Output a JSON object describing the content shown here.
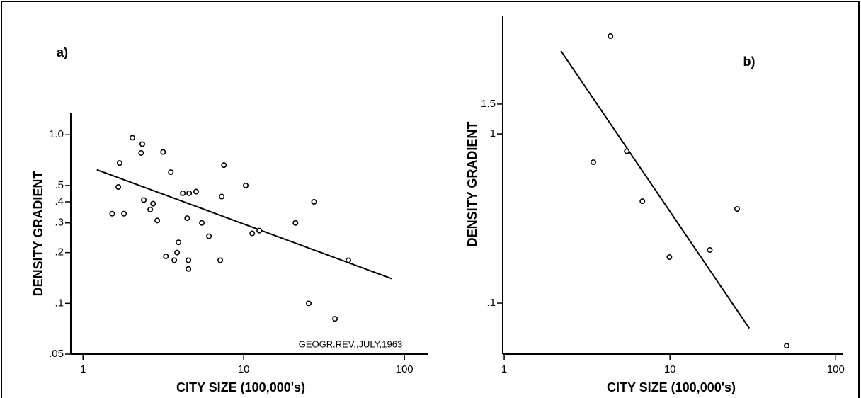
{
  "chart_data": [
    {
      "type": "scatter",
      "label": "a)",
      "xlabel": "CITY SIZE (100,000's)",
      "ylabel": "DENSITY GRADIENT",
      "annotation": "GEOGR.REV.,JULY,1963",
      "xscale": "log",
      "yscale": "log",
      "color": "#000000",
      "xlim": [
        0.84,
        141
      ],
      "ylim": [
        0.05,
        1.34
      ],
      "xticks": [
        1,
        10,
        100
      ],
      "yticks": [
        {
          "value": 1,
          "label": "1.0"
        },
        {
          "value": 0.5,
          "label": ".5"
        },
        {
          "value": 0.4,
          "label": ".4"
        },
        {
          "value": 0.3,
          "label": ".3"
        },
        {
          "value": 0.2,
          "label": ".2"
        },
        {
          "value": 0.1,
          "label": ".1"
        },
        {
          "value": 0.05,
          "label": ".05"
        }
      ],
      "x": [
        1.52,
        1.66,
        1.69,
        1.8,
        2.03,
        2.3,
        2.34,
        2.39,
        2.62,
        2.73,
        2.9,
        3.15,
        3.28,
        3.52,
        3.7,
        3.85,
        3.93,
        4.18,
        4.45,
        4.53,
        4.53,
        4.58,
        5.06,
        5.49,
        6.08,
        7.15,
        7.3,
        7.53,
        10.3,
        11.3,
        12.5,
        21.0,
        25.4,
        27.4,
        37.0,
        44.8
      ],
      "y": [
        0.34,
        0.49,
        0.68,
        0.34,
        0.96,
        0.78,
        0.88,
        0.41,
        0.36,
        0.39,
        0.31,
        0.79,
        0.19,
        0.6,
        0.18,
        0.2,
        0.23,
        0.45,
        0.32,
        0.18,
        0.16,
        0.45,
        0.46,
        0.3,
        0.25,
        0.18,
        0.43,
        0.66,
        0.5,
        0.26,
        0.27,
        0.3,
        0.1,
        0.4,
        0.081,
        0.18
      ],
      "fit_line": {
        "x": [
          1.22,
          83.5
        ],
        "y": [
          0.62,
          0.14
        ]
      }
    },
    {
      "type": "scatter",
      "label": "b)",
      "xlabel": "CITY SIZE (100,000's)",
      "ylabel": "DENSITY GRADIENT",
      "xscale": "log",
      "yscale": "log",
      "color": "#000000",
      "xlim": [
        0.98,
        110
      ],
      "ylim": [
        0.05,
        5
      ],
      "xticks": [
        1,
        10,
        100
      ],
      "yticks": [
        1.5,
        1,
        {
          "value": 0.1,
          "label": ".1"
        }
      ],
      "x": [
        3.45,
        4.38,
        5.49,
        6.82,
        9.92,
        17.4,
        25.4,
        50.6
      ],
      "y": [
        0.68,
        3.78,
        0.79,
        0.4,
        0.187,
        0.206,
        0.36,
        0.056
      ],
      "fit_line": {
        "x": [
          2.2,
          30.1
        ],
        "y": [
          3.09,
          0.071
        ]
      }
    }
  ]
}
